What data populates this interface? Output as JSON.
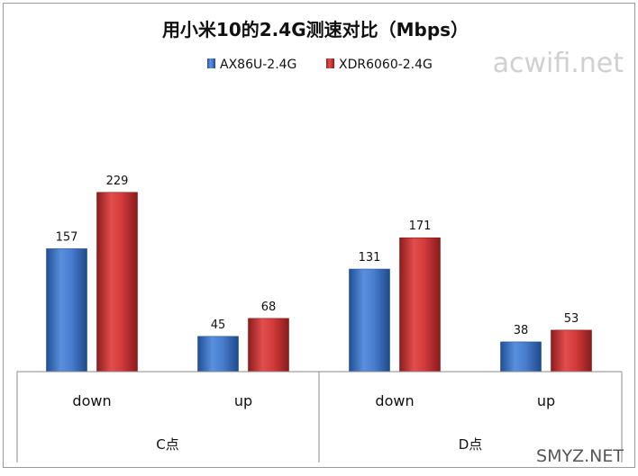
{
  "chart_data": {
    "type": "bar",
    "title": "用小米10的2.4G测速对比（Mbps）",
    "groups": [
      {
        "label": "C点",
        "categories": [
          "down",
          "up"
        ]
      },
      {
        "label": "D点",
        "categories": [
          "down",
          "up"
        ]
      }
    ],
    "series": [
      {
        "name": "AX86U-2.4G",
        "color": "#3f78c8",
        "values": [
          157,
          45,
          131,
          38
        ]
      },
      {
        "name": "XDR6060-2.4G",
        "color": "#cc3333",
        "values": [
          229,
          68,
          171,
          53
        ]
      }
    ],
    "ylim": [
      0,
      300
    ],
    "grid": false,
    "legend": "top-center",
    "data_labels": true
  },
  "watermarks": {
    "top_right": "acwifi.net",
    "bottom_right": "SMYZ.NET"
  }
}
